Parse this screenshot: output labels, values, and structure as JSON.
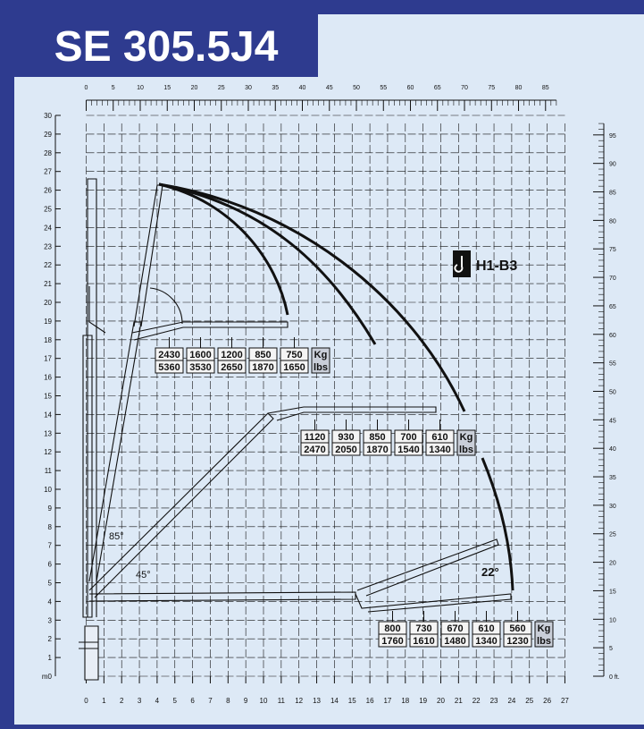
{
  "title": "SE 305.5J4",
  "hook_label": "H1-B3",
  "angles": [
    "85°",
    "45°",
    "22°"
  ],
  "axes": {
    "x_m_ticks": [
      0,
      1,
      2,
      3,
      4,
      5,
      6,
      7,
      8,
      9,
      10,
      11,
      12,
      13,
      14,
      15,
      16,
      17,
      18,
      19,
      20,
      21,
      22,
      23,
      24,
      25,
      26,
      27
    ],
    "x_ft_ticks": [
      0,
      5,
      10,
      15,
      20,
      25,
      30,
      35,
      40,
      45,
      50,
      55,
      60,
      65,
      70,
      75,
      80,
      85
    ],
    "y_m_ticks": [
      1,
      2,
      3,
      4,
      5,
      6,
      7,
      8,
      9,
      10,
      11,
      12,
      13,
      14,
      15,
      16,
      17,
      18,
      19,
      20,
      21,
      22,
      23,
      24,
      25,
      26,
      27,
      28,
      29,
      30
    ],
    "y_m_zero_label": "m0",
    "y_ft_ticks": [
      5,
      10,
      15,
      20,
      25,
      30,
      35,
      40,
      45,
      50,
      55,
      60,
      65,
      70,
      75,
      80,
      85,
      90,
      95
    ],
    "y_ft_zero_label": "0 ft."
  },
  "load_tables": [
    {
      "kg": [
        "2430",
        "1600",
        "1200",
        "850",
        "750"
      ],
      "lbs": [
        "5360",
        "3530",
        "2650",
        "1870",
        "1650"
      ],
      "unit_kg": "Kg",
      "unit_lbs": "lbs"
    },
    {
      "kg": [
        "1120",
        "930",
        "850",
        "700",
        "610"
      ],
      "lbs": [
        "2470",
        "2050",
        "1870",
        "1540",
        "1340"
      ],
      "unit_kg": "Kg",
      "unit_lbs": "lbs"
    },
    {
      "kg": [
        "800",
        "730",
        "670",
        "610",
        "560"
      ],
      "lbs": [
        "1760",
        "1610",
        "1480",
        "1340",
        "1230"
      ],
      "unit_kg": "Kg",
      "unit_lbs": "lbs"
    }
  ],
  "colors": {
    "frame": "#2e3b8f",
    "panel": "#dde9f6",
    "ink": "#111111",
    "table_fill": "#f4f4f4"
  }
}
